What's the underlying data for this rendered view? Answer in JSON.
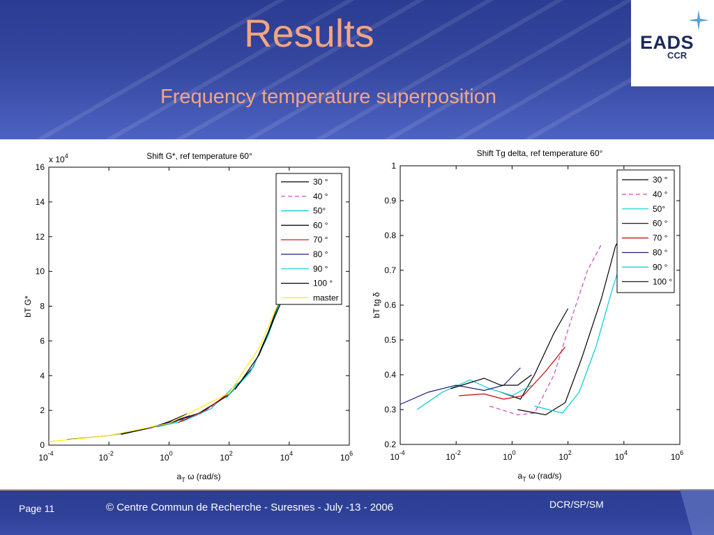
{
  "slide": {
    "title": "Results",
    "subtitle": "Frequency temperature superposition"
  },
  "logo": {
    "name": "EADS",
    "sub": "CCR"
  },
  "footer": {
    "page": "Page 11",
    "copyright": "© Centre Commun de Recherche  - Suresnes - July -13 - 2006",
    "department": "DCR/SP/SM"
  },
  "colors": {
    "header_bg": "#34469e",
    "title": "#f4a582",
    "footer_line": "#e8a66f"
  },
  "chart_data": [
    {
      "type": "line",
      "title": "Shift G*, ref temperature 60°",
      "xlabel_main": "a",
      "xlabel_sub": "T",
      "xlabel_rest": " ω (rad/s)",
      "ylabel": "bT G*",
      "y_multiplier": "x 10",
      "y_multiplier_exp": "4",
      "x_scale": "log",
      "xlim_exp": [
        -4,
        6
      ],
      "x_ticks_exp": [
        "-4",
        "-2",
        "0",
        "2",
        "4",
        "6"
      ],
      "ylim": [
        0,
        16
      ],
      "y_ticks": [
        "0",
        "2",
        "4",
        "6",
        "8",
        "10",
        "12",
        "14",
        "16"
      ],
      "grid": false,
      "legend_position": "top-right",
      "series": [
        {
          "name": "30 °",
          "color": "#000000",
          "dash": "",
          "points": [
            [
              -1.6,
              0.62
            ],
            [
              -0.6,
              1.0
            ],
            [
              0.0,
              1.35
            ],
            [
              0.6,
              1.8
            ]
          ]
        },
        {
          "name": "40 °",
          "color": "#cc44cc",
          "dash": "6,4",
          "points": [
            [
              -1.0,
              0.85
            ],
            [
              0.0,
              1.25
            ],
            [
              1.0,
              1.75
            ],
            [
              1.9,
              2.8
            ]
          ]
        },
        {
          "name": "50°",
          "color": "#00c8d8",
          "dash": "",
          "points": [
            [
              -0.4,
              1.05
            ],
            [
              0.5,
              1.4
            ],
            [
              1.4,
              2.1
            ],
            [
              2.3,
              3.6
            ]
          ]
        },
        {
          "name": "60 °",
          "color": "#000000",
          "dash": "",
          "points": [
            [
              -3.4,
              0.32
            ],
            [
              -2.0,
              0.55
            ],
            [
              -1.0,
              0.85
            ],
            [
              0.0,
              1.25
            ],
            [
              1.0,
              1.85
            ],
            [
              2.0,
              2.9
            ],
            [
              2.8,
              4.5
            ],
            [
              3.3,
              6.5
            ],
            [
              3.7,
              8.4
            ]
          ]
        },
        {
          "name": "70 °",
          "color": "#cc0000",
          "dash": "",
          "points": [
            [
              0.3,
              1.3
            ],
            [
              1.2,
              2.0
            ],
            [
              2.0,
              3.0
            ]
          ]
        },
        {
          "name": "80 °",
          "color": "#1a1a7a",
          "dash": "",
          "points": [
            [
              -0.8,
              0.95
            ],
            [
              0.0,
              1.3
            ],
            [
              0.7,
              1.7
            ]
          ]
        },
        {
          "name": "90 °",
          "color": "#00c8d8",
          "dash": "",
          "points": [
            [
              1.9,
              2.7
            ],
            [
              2.7,
              4.2
            ],
            [
              3.3,
              6.3
            ],
            [
              3.7,
              8.3
            ]
          ]
        },
        {
          "name": "100 °",
          "color": "#000000",
          "dash": "",
          "points": [
            [
              2.2,
              3.2
            ],
            [
              3.0,
              5.2
            ],
            [
              3.5,
              7.3
            ],
            [
              3.75,
              8.3
            ]
          ]
        },
        {
          "name": "master",
          "color": "#ffee00",
          "dash": "",
          "points": [
            [
              -4.0,
              0.2
            ],
            [
              -2.0,
              0.55
            ],
            [
              0.0,
              1.25
            ],
            [
              2.0,
              3.0
            ],
            [
              3.0,
              5.6
            ],
            [
              3.7,
              8.4
            ]
          ]
        }
      ]
    },
    {
      "type": "line",
      "title": "Shift Tg delta, ref temperature 60°",
      "xlabel_main": "a",
      "xlabel_sub": "T",
      "xlabel_rest": " ω (rad/s)",
      "ylabel": "bT tg δ",
      "x_scale": "log",
      "xlim_exp": [
        -4,
        6
      ],
      "x_ticks_exp": [
        "-4",
        "-2",
        "0",
        "2",
        "4",
        "6"
      ],
      "ylim": [
        0.2,
        1.0
      ],
      "y_ticks": [
        "0.2",
        "0.3",
        "0.4",
        "0.5",
        "0.6",
        "0.7",
        "0.8",
        "0.9",
        "1"
      ],
      "grid": false,
      "legend_position": "top-right",
      "series": [
        {
          "name": "30 °",
          "color": "#000000",
          "dash": "",
          "points": [
            [
              -0.4,
              0.35
            ],
            [
              0.3,
              0.33
            ],
            [
              0.8,
              0.4
            ],
            [
              1.5,
              0.52
            ],
            [
              2.0,
              0.59
            ]
          ]
        },
        {
          "name": "40 °",
          "color": "#cc44cc",
          "dash": "6,4",
          "points": [
            [
              -0.8,
              0.31
            ],
            [
              0.2,
              0.285
            ],
            [
              0.8,
              0.29
            ],
            [
              1.5,
              0.4
            ],
            [
              2.2,
              0.58
            ],
            [
              2.7,
              0.7
            ],
            [
              3.2,
              0.775
            ]
          ]
        },
        {
          "name": "50°",
          "color": "#00c8d8",
          "dash": "",
          "points": [
            [
              -3.4,
              0.3
            ],
            [
              -2.5,
              0.35
            ],
            [
              -1.5,
              0.385
            ],
            [
              -0.8,
              0.36
            ],
            [
              0.0,
              0.34
            ],
            [
              0.7,
              0.37
            ]
          ]
        },
        {
          "name": "60 °",
          "color": "#000000",
          "dash": "",
          "points": [
            [
              0.2,
              0.3
            ],
            [
              1.2,
              0.285
            ],
            [
              1.9,
              0.32
            ],
            [
              2.5,
              0.45
            ],
            [
              3.2,
              0.62
            ],
            [
              3.7,
              0.77
            ],
            [
              4.0,
              0.81
            ]
          ]
        },
        {
          "name": "70 °",
          "color": "#cc0000",
          "dash": "",
          "points": [
            [
              -1.9,
              0.34
            ],
            [
              -1.0,
              0.345
            ],
            [
              -0.3,
              0.33
            ],
            [
              0.4,
              0.34
            ],
            [
              1.2,
              0.41
            ],
            [
              1.9,
              0.48
            ]
          ]
        },
        {
          "name": "80 °",
          "color": "#1a1a7a",
          "dash": "",
          "points": [
            [
              -4.0,
              0.315
            ],
            [
              -3.0,
              0.35
            ],
            [
              -2.0,
              0.37
            ],
            [
              -1.0,
              0.355
            ],
            [
              -0.3,
              0.37
            ],
            [
              0.3,
              0.42
            ]
          ]
        },
        {
          "name": "90 °",
          "color": "#00c8d8",
          "dash": "",
          "points": [
            [
              0.8,
              0.31
            ],
            [
              1.8,
              0.29
            ],
            [
              2.4,
              0.35
            ],
            [
              3.0,
              0.48
            ],
            [
              3.6,
              0.65
            ],
            [
              4.0,
              0.75
            ]
          ]
        },
        {
          "name": "100 °",
          "color": "#000000",
          "dash": "",
          "points": [
            [
              -2.2,
              0.36
            ],
            [
              -1.0,
              0.39
            ],
            [
              -0.4,
              0.37
            ],
            [
              0.2,
              0.37
            ],
            [
              0.7,
              0.4
            ]
          ]
        }
      ]
    }
  ]
}
